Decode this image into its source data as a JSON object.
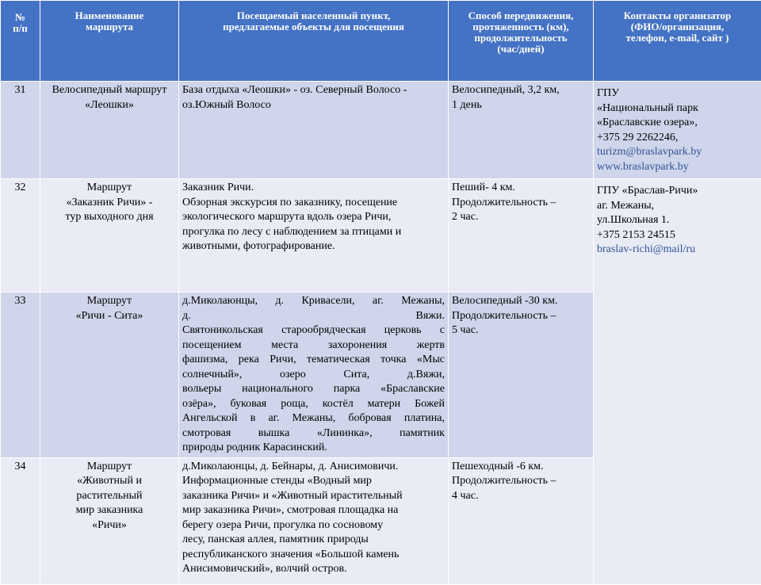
{
  "header": [
    [
      "№",
      "п/п"
    ],
    [
      "Наименование",
      "маршрута"
    ],
    [
      "Посещаемый населенный пункт,",
      "предлагаемые объекты для посещения"
    ],
    [
      "Способ передвижения,",
      "протяженность (км),",
      "продолжительность",
      "(час/дней)"
    ],
    [
      "Контакты организатор",
      "(ФИО/организация,",
      "телефон, e-mail, сайт )"
    ]
  ],
  "rows": [
    {
      "number": "31",
      "name": [
        "Велосипедный маршрут",
        "«Леошки»"
      ],
      "places": [
        "База отдыха «Леошки»  - оз. Северный Волосо -",
        "оз.Южный Волосо"
      ],
      "transport": [
        "Велосипедный, 3,2 км,",
        " 1 день"
      ],
      "contacts": [
        "  ГПУ",
        "  «Национальный парк",
        "  «Браславские озера»,",
        "+375 29 2262246,",
        "turizm@braslavpark.by",
        "www.braslavpark.by"
      ]
    },
    {
      "number": "32",
      "name": [
        "Маршрут",
        "«Заказник Ричи» -",
        "тур выходного дня"
      ],
      "places": [
        "Заказник Ричи.",
        "Обзорная экскурсия по заказнику,  посещение",
        "экологического  маршрута  вдоль озера Ричи,",
        "прогулка  по лесу  с наблюдением за птицами и",
        "животными, фотографирование."
      ],
      "transport": [
        "Пеший- 4 км.",
        "Продолжительность –",
        "2 час."
      ],
      "contacts": [
        "ГПУ «Браслав-Ричи»",
        "аг. Межаны,",
        "ул.Школьная  1.",
        "+375 2153 24515",
        "braslav-richi@mail/ru"
      ]
    },
    {
      "number": "33",
      "name": [
        "Маршрут",
        "«Ричи - Сита»"
      ],
      "places": [
        "д.Миколаюнцы, д. Кривасели, аг. Межаны,",
        "д. Вяжи.",
        "Святоникольская старообрядческая церковь с",
        "посещением места захоронения жертв",
        "фашизма, река Ричи, тематическая точка «Мыс",
        "солнечный», озеро Сита, д.Вяжи,",
        "вольеры национального парка «Браславские",
        "озёра», буковая роща, костёл матери Божей",
        "Ангельской в аг. Межаны, бобровая платина,",
        "смотровая вышка «Лининка», памятник",
        "природы родник Карасинский."
      ],
      "transport": [
        "Велосипедный -30 км.",
        "Продолжительность –",
        "5 час."
      ]
    },
    {
      "number": "34",
      "name": [
        "Маршрут",
        "«Животный и",
        "растительный",
        "мир заказника",
        "«Ричи»"
      ],
      "places": [
        "д.Миколаюнцы,  д.  Бейнары,  д.  Анисимовичи.",
        "Информационные стенды «Водный мир",
        "заказника Ричи» и «Животный ирастительный",
        "мир заказника Ричи», смотровая  площадка  на",
        "берегу  озера  Ричи,  прогулка   по сосновому",
        "лесу, панская аллея, памятник природы",
        "республиканского значения «Большой камень",
        "Анисимовичский», волчий остров."
      ],
      "transport": [
        "Пешеходный  -6 км.",
        "Продолжительность –",
        "4 час."
      ]
    }
  ]
}
